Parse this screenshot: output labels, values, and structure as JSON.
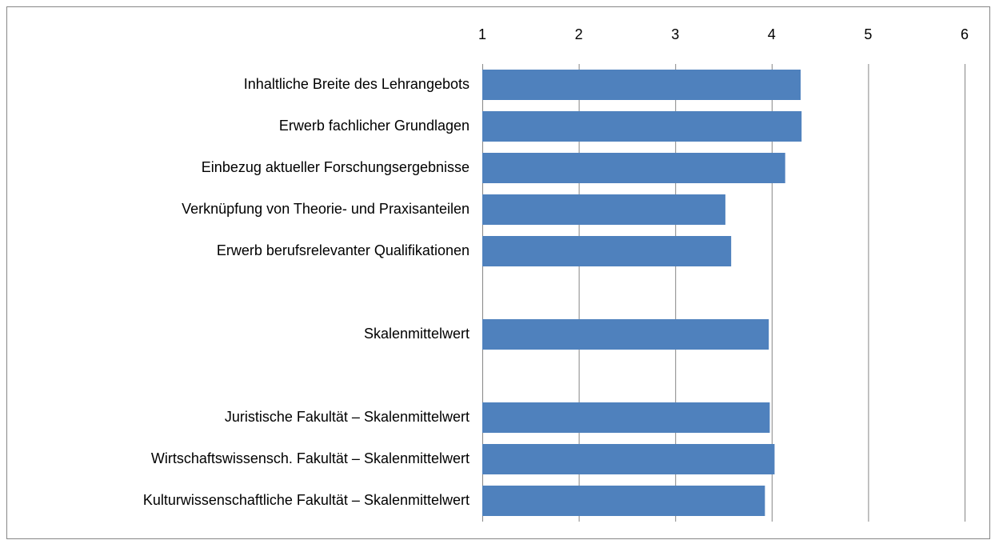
{
  "chart_data": {
    "type": "hbar",
    "categories": [
      "Inhaltliche Breite des Lehrangebots",
      "Erwerb fachlicher Grundlagen",
      "Einbezug aktueller Forschungsergebnisse",
      "Verknüpfung von Theorie- und Praxisanteilen",
      "Erwerb berufsrelevanter Qualifikationen",
      null,
      "Skalenmittelwert",
      null,
      "Juristische Fakultät – Skalenmittelwert",
      "Wirtschaftswissensch. Fakultät – Skalenmittelwert",
      "Kulturwissenschaftliche Fakultät – Skalenmittelwert"
    ],
    "values": [
      4.3,
      4.31,
      4.14,
      3.52,
      3.58,
      null,
      3.97,
      null,
      3.98,
      4.03,
      3.93
    ],
    "color": "#4f81bd",
    "xlim": [
      1,
      6
    ],
    "xticks": [
      1,
      2,
      3,
      4,
      5,
      6
    ],
    "grid": true
  }
}
